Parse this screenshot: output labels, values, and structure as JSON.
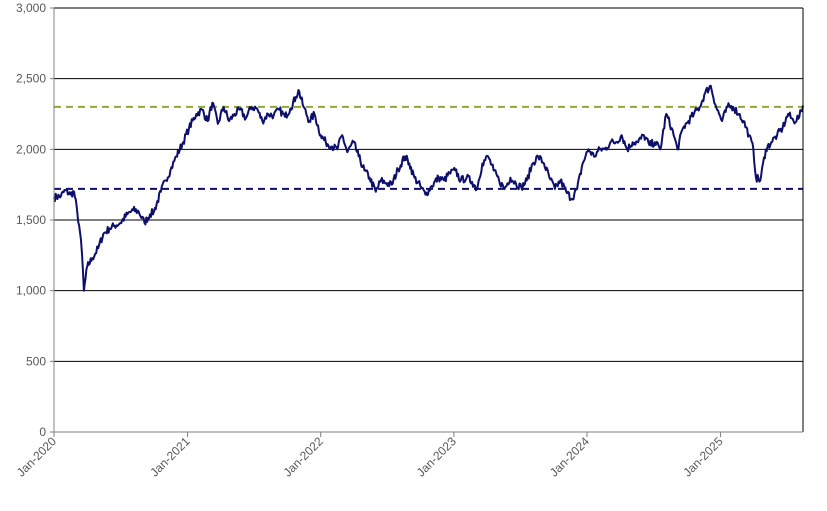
{
  "chart_data": {
    "type": "line",
    "title": "",
    "xlabel": "",
    "ylabel": "",
    "ylim": [
      0,
      3000
    ],
    "yticks": [
      0,
      500,
      1000,
      1500,
      2000,
      2500,
      3000
    ],
    "ytick_labels": [
      "0",
      "500",
      "1,000",
      "1,500",
      "2,000",
      "2,500",
      "3,000"
    ],
    "xlim": [
      "2020-01-01",
      "2025-08-15"
    ],
    "xticks": [
      "2020-01-01",
      "2021-01-01",
      "2022-01-01",
      "2023-01-01",
      "2024-01-01",
      "2025-01-01"
    ],
    "xtick_labels": [
      "Jan-2020",
      "Jan-2021",
      "Jan-2022",
      "Jan-2023",
      "Jan-2024",
      "Jan-2025"
    ],
    "grid": "horizontal",
    "legend": "none",
    "colors": {
      "series": "#0d0f6b",
      "lower_line": "#0d0f6b",
      "upper_line": "#8fa83a",
      "grid": "#000000"
    },
    "reference_lines": [
      {
        "y": 2300,
        "style": "dashed",
        "color": "#8fa83a"
      },
      {
        "y": 1720,
        "style": "dashed",
        "color": "#0d0f6b"
      }
    ],
    "series": [
      {
        "x": [
          "2020-01-01",
          "2020-01-20",
          "2020-02-01",
          "2020-02-15",
          "2020-02-25",
          "2020-03-05",
          "2020-03-12",
          "2020-03-18",
          "2020-03-23",
          "2020-04-01",
          "2020-04-15",
          "2020-05-01",
          "2020-05-15",
          "2020-06-01",
          "2020-06-15",
          "2020-07-01",
          "2020-07-20",
          "2020-08-05",
          "2020-08-20",
          "2020-09-05",
          "2020-09-20",
          "2020-10-01",
          "2020-10-20",
          "2020-11-01",
          "2020-11-15",
          "2020-12-01",
          "2020-12-20",
          "2021-01-05",
          "2021-01-25",
          "2021-02-10",
          "2021-02-25",
          "2021-03-10",
          "2021-03-25",
          "2021-04-10",
          "2021-04-25",
          "2021-05-10",
          "2021-05-25",
          "2021-06-10",
          "2021-06-25",
          "2021-07-10",
          "2021-07-25",
          "2021-08-10",
          "2021-08-25",
          "2021-09-10",
          "2021-09-25",
          "2021-10-10",
          "2021-10-25",
          "2021-11-01",
          "2021-11-15",
          "2021-12-01",
          "2021-12-15",
          "2022-01-01",
          "2022-01-15",
          "2022-02-01",
          "2022-02-15",
          "2022-03-01",
          "2022-03-15",
          "2022-04-01",
          "2022-04-15",
          "2022-05-01",
          "2022-05-15",
          "2022-06-01",
          "2022-06-15",
          "2022-07-01",
          "2022-07-15",
          "2022-08-01",
          "2022-08-20",
          "2022-09-01",
          "2022-09-15",
          "2022-10-01",
          "2022-10-15",
          "2022-11-01",
          "2022-11-20",
          "2022-12-05",
          "2022-12-20",
          "2023-01-05",
          "2023-01-20",
          "2023-02-05",
          "2023-02-20",
          "2023-03-05",
          "2023-03-20",
          "2023-04-05",
          "2023-04-20",
          "2023-05-05",
          "2023-05-20",
          "2023-06-05",
          "2023-06-20",
          "2023-07-05",
          "2023-07-20",
          "2023-08-05",
          "2023-08-20",
          "2023-09-05",
          "2023-09-20",
          "2023-10-05",
          "2023-10-20",
          "2023-11-05",
          "2023-11-20",
          "2023-12-05",
          "2023-12-20",
          "2024-01-05",
          "2024-01-20",
          "2024-02-05",
          "2024-02-20",
          "2024-03-05",
          "2024-03-20",
          "2024-04-05",
          "2024-04-20",
          "2024-05-05",
          "2024-05-20",
          "2024-06-05",
          "2024-06-20",
          "2024-07-05",
          "2024-07-20",
          "2024-08-05",
          "2024-08-20",
          "2024-09-05",
          "2024-09-20",
          "2024-10-05",
          "2024-10-20",
          "2024-11-05",
          "2024-11-20",
          "2024-12-05",
          "2024-12-20",
          "2025-01-05",
          "2025-01-20",
          "2025-02-05",
          "2025-02-20",
          "2025-03-05",
          "2025-03-20",
          "2025-04-01",
          "2025-04-08",
          "2025-04-20",
          "2025-05-05",
          "2025-05-20",
          "2025-06-05",
          "2025-06-20",
          "2025-07-05",
          "2025-07-20",
          "2025-08-05",
          "2025-08-15"
        ],
        "y": [
          1660,
          1670,
          1710,
          1680,
          1700,
          1550,
          1420,
          1250,
          1000,
          1170,
          1230,
          1300,
          1400,
          1440,
          1460,
          1480,
          1540,
          1570,
          1560,
          1480,
          1540,
          1560,
          1700,
          1780,
          1850,
          1950,
          2050,
          2150,
          2250,
          2280,
          2200,
          2330,
          2180,
          2300,
          2200,
          2250,
          2280,
          2220,
          2300,
          2290,
          2200,
          2250,
          2240,
          2280,
          2230,
          2290,
          2370,
          2420,
          2300,
          2200,
          2250,
          2100,
          2050,
          2020,
          2000,
          2100,
          1980,
          2050,
          1950,
          1850,
          1800,
          1700,
          1780,
          1760,
          1750,
          1860,
          1950,
          1900,
          1800,
          1740,
          1680,
          1740,
          1800,
          1780,
          1830,
          1850,
          1780,
          1800,
          1770,
          1720,
          1900,
          1950,
          1850,
          1780,
          1720,
          1800,
          1760,
          1730,
          1780,
          1900,
          1950,
          1900,
          1800,
          1720,
          1780,
          1700,
          1650,
          1720,
          1900,
          2000,
          1950,
          2000,
          2000,
          2050,
          2050,
          2100,
          2000,
          2050,
          2050,
          2100,
          2030,
          2050,
          2000,
          2250,
          2150,
          2000,
          2150,
          2200,
          2250,
          2300,
          2400,
          2450,
          2300,
          2200,
          2300,
          2300,
          2250,
          2200,
          2100,
          2000,
          1800,
          1780,
          2000,
          2050,
          2100,
          2150,
          2250,
          2200,
          2230,
          2310
        ]
      }
    ]
  }
}
